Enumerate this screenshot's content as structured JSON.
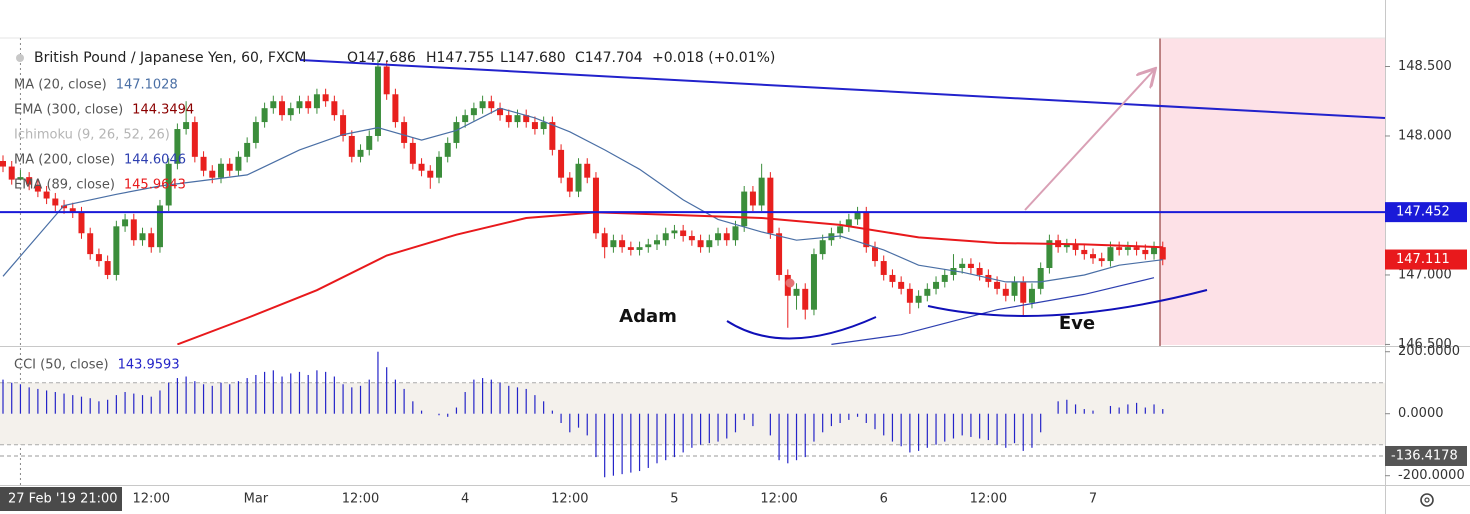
{
  "header": {
    "symbol": "British Pound / Japanese Yen, 60, FXCM",
    "ohlc": [
      "O147.686",
      "H147.755",
      "L147.680",
      "C147.704",
      "+0.018 (+0.01%)"
    ]
  },
  "chart_data": [
    {
      "type": "candlestick",
      "categories": [
        null,
        null,
        "27 Feb '19 21:00",
        null,
        null,
        null,
        null,
        null,
        null,
        null,
        null,
        null,
        null,
        null,
        null,
        null,
        null,
        "12:00",
        null,
        null,
        null,
        null,
        null,
        null,
        null,
        null,
        null,
        null,
        null,
        "Mar",
        null,
        null,
        null,
        null,
        null,
        null,
        null,
        null,
        null,
        null,
        null,
        "12:00",
        null,
        null,
        null,
        null,
        null,
        null,
        null,
        null,
        null,
        null,
        null,
        "4",
        null,
        null,
        null,
        null,
        null,
        null,
        null,
        null,
        null,
        null,
        null,
        "12:00",
        null,
        null,
        null,
        null,
        null,
        null,
        null,
        null,
        null,
        null,
        null,
        "5",
        null,
        null,
        null,
        null,
        null,
        null,
        null,
        null,
        null,
        null,
        null,
        "12:00",
        null,
        null,
        null,
        null,
        null,
        null,
        null,
        null,
        null,
        null,
        null,
        "6",
        null,
        null,
        null,
        null,
        null,
        null,
        null,
        null,
        null,
        null,
        null,
        "12:00",
        null,
        null,
        null,
        null,
        null,
        null,
        null,
        null,
        null,
        null,
        null,
        "7",
        null,
        null,
        null,
        null,
        null,
        null,
        null,
        null
      ],
      "ohlc": [
        [
          147.82,
          147.86,
          147.74,
          147.78
        ],
        [
          147.78,
          147.82,
          147.65,
          147.686
        ],
        [
          147.686,
          147.755,
          147.68,
          147.704
        ],
        [
          147.704,
          147.74,
          147.61,
          147.65
        ],
        [
          147.65,
          147.69,
          147.56,
          147.6
        ],
        [
          147.6,
          147.64,
          147.51,
          147.55
        ],
        [
          147.55,
          147.59,
          147.46,
          147.5
        ],
        [
          147.5,
          147.54,
          147.44,
          147.48
        ],
        [
          147.48,
          147.52,
          147.41,
          147.45
        ],
        [
          147.45,
          147.49,
          147.26,
          147.3
        ],
        [
          147.3,
          147.34,
          147.11,
          147.15
        ],
        [
          147.15,
          147.19,
          147.06,
          147.1
        ],
        [
          147.1,
          147.14,
          146.97,
          147.0
        ],
        [
          147.0,
          147.39,
          146.96,
          147.35
        ],
        [
          147.35,
          147.44,
          147.31,
          147.4
        ],
        [
          147.4,
          147.44,
          147.21,
          147.25
        ],
        [
          147.25,
          147.34,
          147.21,
          147.3
        ],
        [
          147.3,
          147.34,
          147.16,
          147.2
        ],
        [
          147.2,
          147.54,
          147.16,
          147.5
        ],
        [
          147.5,
          147.84,
          147.46,
          147.8
        ],
        [
          147.8,
          148.09,
          147.76,
          148.05
        ],
        [
          148.05,
          148.25,
          148.01,
          148.1
        ],
        [
          148.1,
          148.14,
          147.81,
          147.85
        ],
        [
          147.85,
          147.89,
          147.71,
          147.75
        ],
        [
          147.75,
          147.79,
          147.66,
          147.7
        ],
        [
          147.7,
          147.84,
          147.66,
          147.8
        ],
        [
          147.8,
          147.84,
          147.71,
          147.75
        ],
        [
          147.75,
          147.89,
          147.71,
          147.85
        ],
        [
          147.85,
          147.99,
          147.81,
          147.95
        ],
        [
          147.95,
          148.14,
          147.91,
          148.1
        ],
        [
          148.1,
          148.24,
          148.06,
          148.2
        ],
        [
          148.2,
          148.29,
          148.16,
          148.25
        ],
        [
          148.25,
          148.29,
          148.11,
          148.15
        ],
        [
          148.15,
          148.24,
          148.11,
          148.2
        ],
        [
          148.2,
          148.29,
          148.16,
          148.25
        ],
        [
          148.25,
          148.29,
          148.16,
          148.2
        ],
        [
          148.2,
          148.34,
          148.16,
          148.3
        ],
        [
          148.3,
          148.34,
          148.21,
          148.25
        ],
        [
          148.25,
          148.29,
          148.11,
          148.15
        ],
        [
          148.15,
          148.19,
          147.96,
          148.0
        ],
        [
          148.0,
          148.04,
          147.81,
          147.85
        ],
        [
          147.85,
          147.94,
          147.81,
          147.9
        ],
        [
          147.9,
          148.04,
          147.86,
          148.0
        ],
        [
          148.0,
          148.55,
          147.96,
          148.5
        ],
        [
          148.5,
          148.54,
          148.26,
          148.3
        ],
        [
          148.3,
          148.34,
          148.06,
          148.1
        ],
        [
          148.1,
          148.14,
          147.91,
          147.95
        ],
        [
          147.95,
          147.99,
          147.76,
          147.8
        ],
        [
          147.8,
          147.84,
          147.71,
          147.75
        ],
        [
          147.75,
          147.79,
          147.62,
          147.7
        ],
        [
          147.7,
          147.89,
          147.66,
          147.85
        ],
        [
          147.85,
          147.99,
          147.81,
          147.95
        ],
        [
          147.95,
          148.14,
          147.91,
          148.1
        ],
        [
          148.1,
          148.19,
          148.06,
          148.15
        ],
        [
          148.15,
          148.24,
          148.11,
          148.2
        ],
        [
          148.2,
          148.29,
          148.16,
          148.25
        ],
        [
          148.25,
          148.29,
          148.16,
          148.2
        ],
        [
          148.2,
          148.24,
          148.11,
          148.15
        ],
        [
          148.15,
          148.19,
          148.06,
          148.1
        ],
        [
          148.1,
          148.19,
          148.06,
          148.15
        ],
        [
          148.15,
          148.19,
          148.06,
          148.1
        ],
        [
          148.1,
          148.14,
          148.01,
          148.05
        ],
        [
          148.05,
          148.14,
          148.01,
          148.1
        ],
        [
          148.1,
          148.14,
          147.86,
          147.9
        ],
        [
          147.9,
          147.94,
          147.66,
          147.7
        ],
        [
          147.7,
          147.74,
          147.56,
          147.6
        ],
        [
          147.6,
          147.84,
          147.56,
          147.8
        ],
        [
          147.8,
          147.84,
          147.66,
          147.7
        ],
        [
          147.7,
          147.74,
          147.26,
          147.3
        ],
        [
          147.3,
          147.34,
          147.12,
          147.2
        ],
        [
          147.2,
          147.29,
          147.16,
          147.25
        ],
        [
          147.25,
          147.29,
          147.16,
          147.2
        ],
        [
          147.2,
          147.24,
          147.14,
          147.18
        ],
        [
          147.18,
          147.24,
          147.14,
          147.2
        ],
        [
          147.2,
          147.26,
          147.16,
          147.22
        ],
        [
          147.22,
          147.29,
          147.18,
          147.25
        ],
        [
          147.25,
          147.34,
          147.21,
          147.3
        ],
        [
          147.3,
          147.36,
          147.26,
          147.32
        ],
        [
          147.32,
          147.36,
          147.24,
          147.28
        ],
        [
          147.28,
          147.32,
          147.21,
          147.25
        ],
        [
          147.25,
          147.29,
          147.16,
          147.2
        ],
        [
          147.2,
          147.29,
          147.16,
          147.25
        ],
        [
          147.25,
          147.34,
          147.21,
          147.3
        ],
        [
          147.3,
          147.34,
          147.21,
          147.25
        ],
        [
          147.25,
          147.39,
          147.21,
          147.35
        ],
        [
          147.35,
          147.64,
          147.31,
          147.6
        ],
        [
          147.6,
          147.64,
          147.46,
          147.5
        ],
        [
          147.5,
          147.8,
          147.46,
          147.7
        ],
        [
          147.7,
          147.74,
          147.26,
          147.3
        ],
        [
          147.3,
          147.34,
          146.96,
          147.0
        ],
        [
          147.0,
          147.04,
          146.62,
          146.85
        ],
        [
          146.85,
          146.94,
          146.75,
          146.9
        ],
        [
          146.9,
          146.94,
          146.68,
          146.75
        ],
        [
          146.75,
          147.19,
          146.71,
          147.15
        ],
        [
          147.15,
          147.29,
          147.11,
          147.25
        ],
        [
          147.25,
          147.34,
          147.21,
          147.3
        ],
        [
          147.3,
          147.39,
          147.26,
          147.35
        ],
        [
          147.35,
          147.44,
          147.31,
          147.4
        ],
        [
          147.4,
          147.49,
          147.36,
          147.45
        ],
        [
          147.45,
          147.49,
          147.16,
          147.2
        ],
        [
          147.2,
          147.24,
          147.06,
          147.1
        ],
        [
          147.1,
          147.14,
          146.96,
          147.0
        ],
        [
          147.0,
          147.04,
          146.91,
          146.95
        ],
        [
          146.95,
          146.99,
          146.86,
          146.9
        ],
        [
          146.9,
          146.94,
          146.72,
          146.8
        ],
        [
          146.8,
          146.89,
          146.76,
          146.85
        ],
        [
          146.85,
          146.94,
          146.81,
          146.9
        ],
        [
          146.9,
          146.99,
          146.86,
          146.95
        ],
        [
          146.95,
          147.04,
          146.91,
          147.0
        ],
        [
          147.0,
          147.15,
          146.96,
          147.05
        ],
        [
          147.05,
          147.12,
          147.01,
          147.08
        ],
        [
          147.08,
          147.12,
          147.01,
          147.05
        ],
        [
          147.05,
          147.09,
          146.96,
          147.0
        ],
        [
          147.0,
          147.04,
          146.91,
          146.95
        ],
        [
          146.95,
          146.99,
          146.86,
          146.9
        ],
        [
          146.9,
          146.94,
          146.81,
          146.85
        ],
        [
          146.85,
          146.99,
          146.81,
          146.95
        ],
        [
          146.95,
          146.99,
          146.7,
          146.8
        ],
        [
          146.8,
          146.94,
          146.76,
          146.9
        ],
        [
          146.9,
          147.09,
          146.86,
          147.05
        ],
        [
          147.05,
          147.29,
          147.01,
          147.25
        ],
        [
          147.25,
          147.29,
          147.16,
          147.2
        ],
        [
          147.2,
          147.26,
          147.16,
          147.22
        ],
        [
          147.22,
          147.26,
          147.14,
          147.18
        ],
        [
          147.18,
          147.22,
          147.11,
          147.15
        ],
        [
          147.15,
          147.19,
          147.08,
          147.12
        ],
        [
          147.12,
          147.16,
          147.06,
          147.1
        ],
        [
          147.1,
          147.24,
          147.06,
          147.2
        ],
        [
          147.2,
          147.24,
          147.14,
          147.18
        ],
        [
          147.18,
          147.24,
          147.14,
          147.2
        ],
        [
          147.2,
          147.24,
          147.14,
          147.18
        ],
        [
          147.18,
          147.22,
          147.11,
          147.15
        ],
        [
          147.15,
          147.24,
          147.11,
          147.2
        ],
        [
          147.2,
          147.24,
          147.07,
          147.111
        ]
      ],
      "up_color": "#3b8d3b",
      "down_color": "#e8201e",
      "ylim": [
        146.496,
        148.705
      ],
      "yticks": [
        {
          "value": 148.5,
          "label": "148.500"
        },
        {
          "value": 148.0,
          "label": "148.000"
        },
        {
          "value": 147.0,
          "label": "147.000"
        },
        {
          "value": 146.5,
          "label": "146.500"
        }
      ],
      "indicators": [
        {
          "name": "MA (20, close)",
          "value_label": "147.1028",
          "color": "#4a6fa5",
          "x": [
            0,
            7,
            13,
            18,
            23,
            28,
            34,
            39,
            43,
            48,
            52,
            57,
            61,
            65,
            69,
            73,
            78,
            82,
            87,
            91,
            96,
            101,
            105,
            110,
            115,
            119,
            124,
            128,
            133
          ],
          "values": [
            146.99,
            147.5,
            147.58,
            147.64,
            147.68,
            147.72,
            147.9,
            148.01,
            148.06,
            147.97,
            148.04,
            148.2,
            148.13,
            148.03,
            147.9,
            147.76,
            147.54,
            147.4,
            147.31,
            147.25,
            147.28,
            147.18,
            147.07,
            147.02,
            146.95,
            146.95,
            147.0,
            147.07,
            147.11
          ]
        },
        {
          "name": "EMA (300, close)",
          "value_label": "144.3494",
          "color": "#8b0000"
        },
        {
          "name": "Ichimoku (9, 26, 52, 26)",
          "color": "#b5b5b5"
        },
        {
          "name": "MA (200, close)",
          "value_label": "144.6046",
          "color": "#2d3fb0",
          "x": [
            95,
            103,
            114,
            124,
            132
          ],
          "values": [
            146.5,
            146.57,
            146.75,
            146.86,
            146.98
          ]
        },
        {
          "name": "EMA (89, close)",
          "value_label": "145.9643",
          "color": "#e8191c",
          "x": [
            20,
            28,
            36,
            44,
            52,
            60,
            68,
            78,
            87,
            96,
            105,
            114,
            124,
            133
          ],
          "values": [
            146.5,
            146.69,
            146.89,
            147.14,
            147.29,
            147.41,
            147.45,
            147.43,
            147.41,
            147.36,
            147.27,
            147.23,
            147.22,
            147.2
          ]
        }
      ],
      "hline": {
        "value": 147.452,
        "label": "147.452",
        "color": "#1a1ad8"
      },
      "last_price": {
        "value": 147.111,
        "label": "147.111",
        "color": "#e8191c"
      },
      "annotations": [
        "Adam",
        "Eve"
      ]
    },
    {
      "type": "histogram",
      "title": "CCI (50, close)",
      "value_label": "143.9593",
      "color": "#2424c8",
      "values": [
        110,
        100,
        95,
        85,
        80,
        75,
        70,
        65,
        60,
        55,
        50,
        40,
        45,
        60,
        70,
        65,
        60,
        55,
        75,
        100,
        115,
        120,
        105,
        95,
        90,
        100,
        95,
        105,
        115,
        125,
        135,
        140,
        120,
        130,
        135,
        125,
        140,
        135,
        120,
        95,
        85,
        90,
        110,
        200,
        150,
        110,
        80,
        40,
        10,
        0,
        -5,
        -10,
        20,
        70,
        110,
        115,
        110,
        100,
        90,
        85,
        80,
        60,
        40,
        10,
        -30,
        -60,
        -45,
        -70,
        -140,
        -205,
        -200,
        -195,
        -190,
        -185,
        -175,
        -160,
        -150,
        -140,
        -125,
        -110,
        -100,
        -95,
        -90,
        -80,
        -60,
        -20,
        -40,
        0,
        -70,
        -150,
        -160,
        -150,
        -140,
        -90,
        -60,
        -40,
        -30,
        -20,
        -10,
        -30,
        -50,
        -70,
        -90,
        -105,
        -125,
        -120,
        -110,
        -100,
        -90,
        -80,
        -70,
        -75,
        -80,
        -85,
        -100,
        -110,
        -95,
        -120,
        -110,
        -60,
        0,
        40,
        45,
        30,
        15,
        10,
        0,
        25,
        20,
        30,
        35,
        20,
        30,
        15
      ],
      "ylim": [
        -230,
        212
      ],
      "yticks": [
        {
          "value": 200,
          "label": "200.0000"
        },
        {
          "value": 0,
          "label": "0.0000"
        },
        {
          "value": -200,
          "label": "-200.0000"
        }
      ],
      "bands": [
        100,
        -100
      ],
      "marker": {
        "value": -136.4178,
        "label": "-136.4178"
      }
    }
  ]
}
